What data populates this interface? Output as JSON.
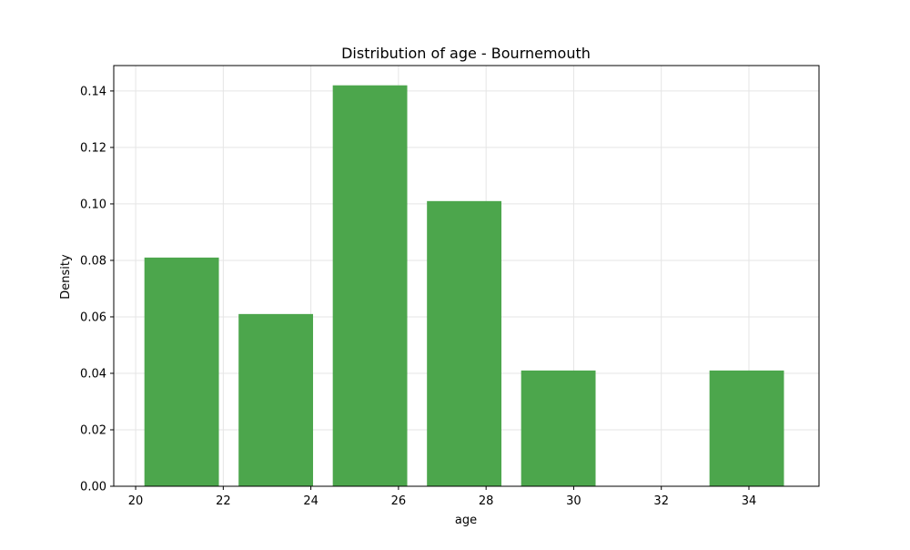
{
  "chart_data": {
    "type": "bar",
    "title": "Distribution of age - Bournemouth",
    "xlabel": "age",
    "ylabel": "Density",
    "xlim": [
      19.5,
      35.6
    ],
    "ylim": [
      0,
      0.149
    ],
    "xticks": [
      20,
      22,
      24,
      26,
      28,
      30,
      32,
      34
    ],
    "yticks": [
      0.0,
      0.02,
      0.04,
      0.06,
      0.08,
      0.1,
      0.12,
      0.14
    ],
    "ytick_labels": [
      "0.00",
      "0.02",
      "0.04",
      "0.06",
      "0.08",
      "0.10",
      "0.12",
      "0.14"
    ],
    "grid": true,
    "bars": [
      {
        "x0": 20.2,
        "x1": 21.9,
        "value": 0.081
      },
      {
        "x0": 22.35,
        "x1": 24.05,
        "value": 0.061
      },
      {
        "x0": 24.5,
        "x1": 26.2,
        "value": 0.142
      },
      {
        "x0": 26.65,
        "x1": 28.35,
        "value": 0.101
      },
      {
        "x0": 28.8,
        "x1": 30.5,
        "value": 0.041
      },
      {
        "x0": 30.95,
        "x1": 32.65,
        "value": 0.0
      },
      {
        "x0": 33.1,
        "x1": 34.8,
        "value": 0.041
      }
    ],
    "colors": {
      "bar": "#4ca64c",
      "grid": "#e5e5e5",
      "axis": "#000000"
    }
  }
}
